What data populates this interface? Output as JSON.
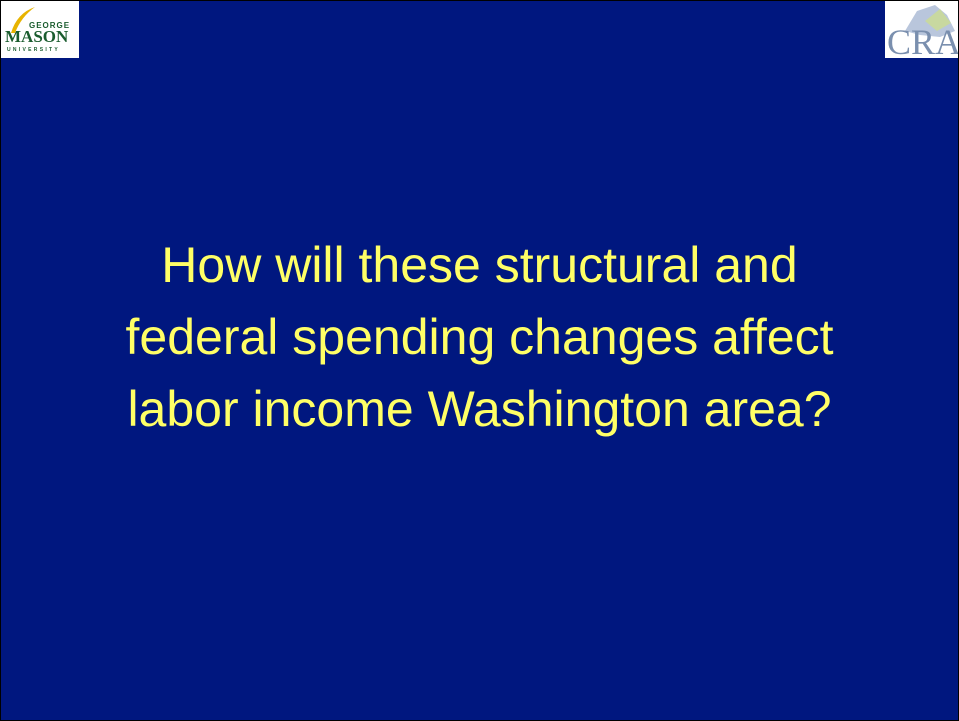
{
  "header": {
    "left_logo": {
      "top": "GEORGE",
      "main": "MASON",
      "bottom": "UNIVERSITY"
    },
    "right_logo": {
      "text": "CRA"
    }
  },
  "slide": {
    "title_lines": [
      "How will these structural and",
      "federal spending changes affect",
      "labor income Washington area?"
    ]
  }
}
